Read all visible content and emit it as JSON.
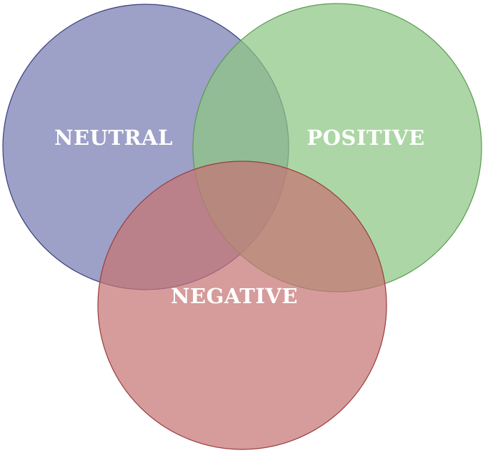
{
  "diagram": {
    "type": "venn",
    "sets": [
      {
        "id": "neutral",
        "label": "NEUTRAL",
        "fill": "#7c80b4",
        "stroke": "#3b3f7c"
      },
      {
        "id": "positive",
        "label": "POSITIVE",
        "fill": "#8cc682",
        "stroke": "#5a9a52"
      },
      {
        "id": "negative",
        "label": "NEGATIVE",
        "fill": "#c67474",
        "stroke": "#9a3d3d"
      }
    ]
  }
}
